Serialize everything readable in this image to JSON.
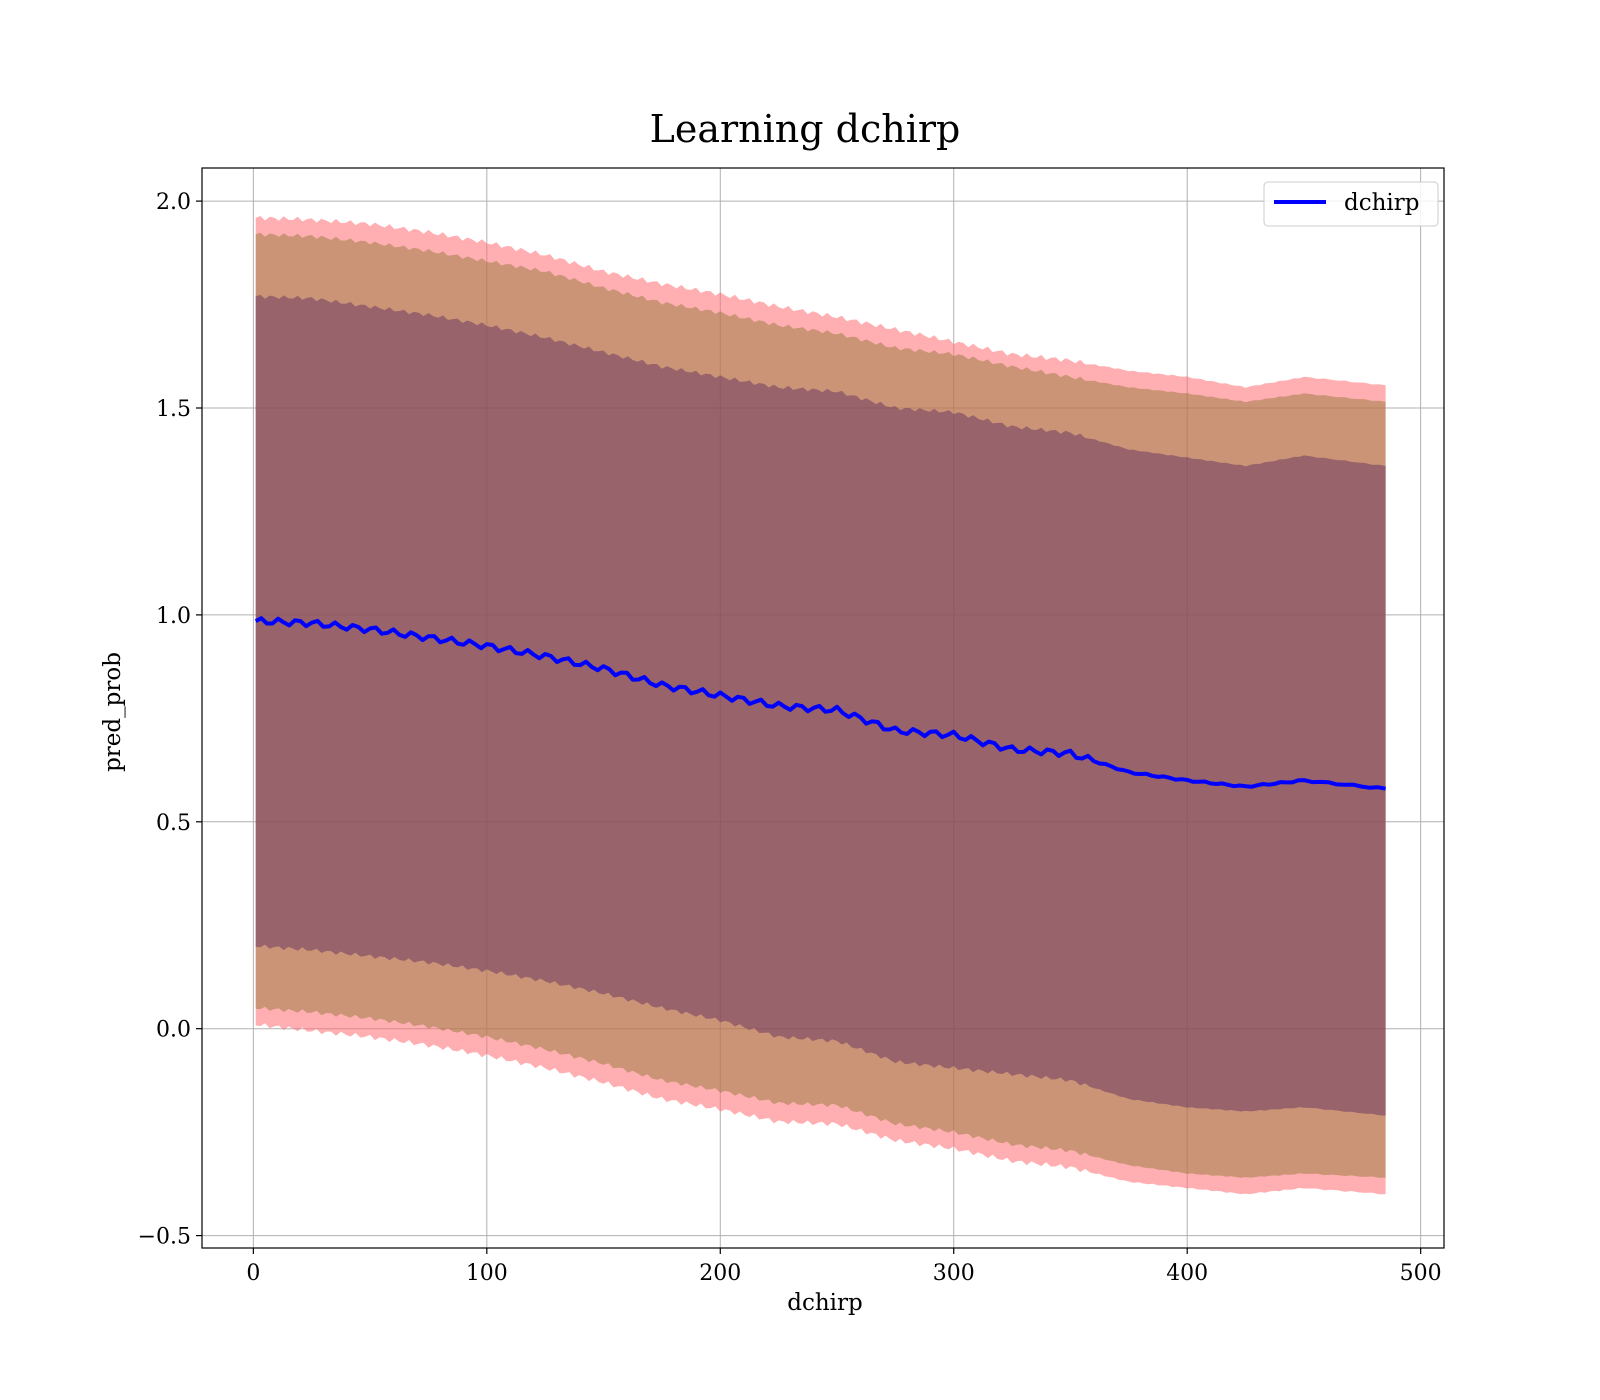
{
  "chart_data": {
    "type": "line",
    "title": "Learning dchirp",
    "xlabel": "dchirp",
    "ylabel": "pred_prob",
    "xlim": [
      -22,
      510
    ],
    "ylim": [
      -0.53,
      2.08
    ],
    "xticks": [
      0,
      100,
      200,
      300,
      400,
      500
    ],
    "xtick_labels": [
      "0",
      "100",
      "200",
      "300",
      "400",
      "500"
    ],
    "yticks": [
      -0.5,
      0.0,
      0.5,
      1.0,
      1.5,
      2.0
    ],
    "ytick_labels": [
      "−0.5",
      "0.0",
      "0.5",
      "1.0",
      "1.5",
      "2.0"
    ],
    "grid": true,
    "legend_position": "top-right",
    "series": [
      {
        "name": "dchirp",
        "color": "#0000ff",
        "x": [
          1,
          25,
          50,
          75,
          100,
          125,
          150,
          175,
          200,
          225,
          250,
          275,
          300,
          325,
          350,
          375,
          400,
          425,
          450,
          485
        ],
        "y": [
          0.985,
          0.98,
          0.965,
          0.945,
          0.925,
          0.9,
          0.87,
          0.83,
          0.805,
          0.78,
          0.77,
          0.72,
          0.71,
          0.675,
          0.665,
          0.62,
          0.6,
          0.585,
          0.6,
          0.58
        ]
      }
    ],
    "bands": {
      "colors": {
        "outer": "#ff6e72",
        "middle": "#9a7a3a",
        "inner": "#6d3b62"
      },
      "x": [
        1,
        25,
        50,
        75,
        100,
        125,
        150,
        175,
        200,
        225,
        250,
        275,
        300,
        325,
        350,
        375,
        400,
        425,
        450,
        485
      ],
      "outer_upper": [
        1.96,
        1.955,
        1.945,
        1.925,
        1.9,
        1.87,
        1.83,
        1.8,
        1.775,
        1.745,
        1.72,
        1.69,
        1.66,
        1.63,
        1.615,
        1.59,
        1.575,
        1.55,
        1.575,
        1.555
      ],
      "middle_upper": [
        1.92,
        1.915,
        1.9,
        1.88,
        1.855,
        1.83,
        1.79,
        1.755,
        1.73,
        1.7,
        1.68,
        1.645,
        1.63,
        1.6,
        1.575,
        1.55,
        1.535,
        1.515,
        1.535,
        1.515
      ],
      "inner_upper": [
        1.77,
        1.765,
        1.745,
        1.725,
        1.7,
        1.67,
        1.635,
        1.6,
        1.575,
        1.55,
        1.54,
        1.5,
        1.49,
        1.455,
        1.44,
        1.4,
        1.38,
        1.36,
        1.385,
        1.36
      ],
      "inner_lower": [
        0.2,
        0.19,
        0.175,
        0.16,
        0.14,
        0.115,
        0.085,
        0.05,
        0.02,
        -0.02,
        -0.03,
        -0.08,
        -0.095,
        -0.11,
        -0.125,
        -0.17,
        -0.19,
        -0.2,
        -0.19,
        -0.21
      ],
      "middle_lower": [
        0.05,
        0.04,
        0.025,
        0.005,
        -0.02,
        -0.05,
        -0.085,
        -0.125,
        -0.15,
        -0.18,
        -0.185,
        -0.23,
        -0.25,
        -0.28,
        -0.295,
        -0.33,
        -0.35,
        -0.36,
        -0.35,
        -0.36
      ],
      "outer_lower": [
        0.01,
        -0.005,
        -0.02,
        -0.04,
        -0.065,
        -0.095,
        -0.13,
        -0.17,
        -0.195,
        -0.225,
        -0.23,
        -0.27,
        -0.29,
        -0.32,
        -0.335,
        -0.37,
        -0.385,
        -0.4,
        -0.385,
        -0.4
      ]
    }
  }
}
